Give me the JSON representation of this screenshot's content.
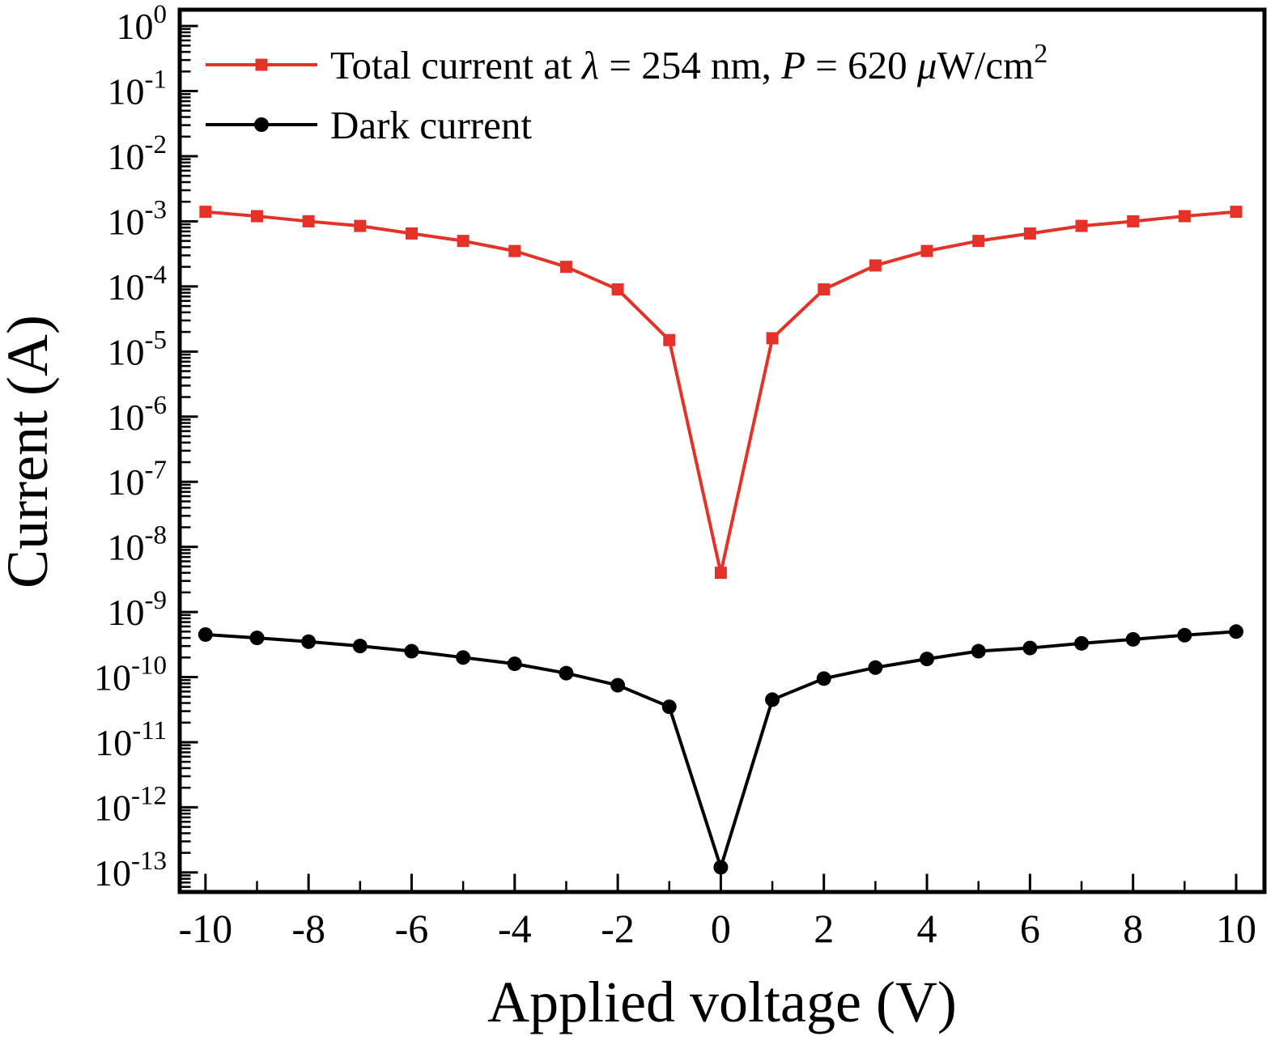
{
  "chart_data": {
    "type": "line",
    "title": "",
    "xlabel": "Applied voltage (V)",
    "ylabel": "Current (A)",
    "x_scale": "linear",
    "y_scale": "log",
    "xlim": [
      -10.5,
      10.55
    ],
    "ylim_exp": [
      -13.3,
      0.25
    ],
    "x_major_ticks": [
      -10,
      -8,
      -6,
      -4,
      -2,
      0,
      2,
      4,
      6,
      8,
      10
    ],
    "x_minor_ticks": [
      -9,
      -7,
      -5,
      -3,
      -1,
      1,
      3,
      5,
      7,
      9
    ],
    "y_major_tick_exponents": [
      0,
      -1,
      -2,
      -3,
      -4,
      -5,
      -6,
      -7,
      -8,
      -9,
      -10,
      -11,
      -12,
      -13
    ],
    "grid": "off",
    "legend_position": "top-left-inside",
    "background": "#ffffff",
    "axis_color": "#000000",
    "x": [
      -10,
      -9,
      -8,
      -7,
      -6,
      -5,
      -4,
      -3,
      -2,
      -1,
      0,
      1,
      2,
      3,
      4,
      5,
      6,
      7,
      8,
      9,
      10
    ],
    "series": [
      {
        "name": "Total current at lambda = 254 nm, P = 620 uW/cm2",
        "color": "#e53228",
        "marker": "square",
        "values": [
          0.0014,
          0.0012,
          0.001,
          0.00085,
          0.00065,
          0.0005,
          0.00035,
          0.0002,
          9e-05,
          1.5e-05,
          4e-09,
          1.6e-05,
          9e-05,
          0.00021,
          0.00035,
          0.0005,
          0.00065,
          0.00085,
          0.001,
          0.0012,
          0.0014
        ]
      },
      {
        "name": "Dark current",
        "color": "#000000",
        "marker": "circle",
        "values": [
          4.5e-10,
          4e-10,
          3.5e-10,
          3e-10,
          2.5e-10,
          2e-10,
          1.6e-10,
          1.15e-10,
          7.5e-11,
          3.5e-11,
          1.2e-13,
          4.5e-11,
          9.5e-11,
          1.4e-10,
          1.9e-10,
          2.5e-10,
          2.8e-10,
          3.3e-10,
          3.8e-10,
          4.4e-10,
          5e-10
        ]
      }
    ],
    "legend": [
      {
        "color": "#e53228",
        "marker": "square",
        "segments": [
          {
            "t": "Total current at "
          },
          {
            "t": "λ",
            "i": true
          },
          {
            "t": " = 254 nm, "
          },
          {
            "t": "P",
            "i": true
          },
          {
            "t": " = 620 "
          },
          {
            "t": "μ",
            "i": true
          },
          {
            "t": "W/cm"
          },
          {
            "t": "2",
            "sup": true
          }
        ]
      },
      {
        "color": "#000000",
        "marker": "circle",
        "segments": [
          {
            "t": "Dark current"
          }
        ]
      }
    ]
  }
}
